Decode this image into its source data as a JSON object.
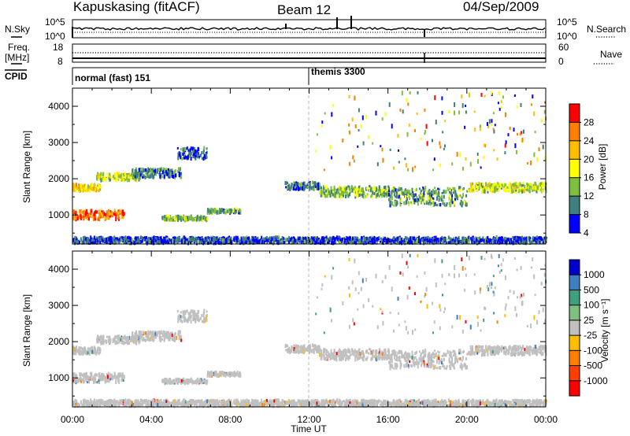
{
  "header": {
    "station": "Kapuskasing (fitACF)",
    "beam": "Beam 12",
    "date": "04/Sep/2009"
  },
  "status_panels": {
    "nsky_label": "N.Sky",
    "nsky_ticks": [
      "10^5",
      "10^0"
    ],
    "nsearch_label": "N.Search",
    "nsearch_ticks": [
      "10^5",
      "10^0"
    ],
    "freq_label_line1": "Freq.",
    "freq_label_line2": "[MHz]",
    "freq_ticks": [
      "18",
      "8"
    ],
    "nave_label": "Nave",
    "nave_ticks": [
      "60",
      "0"
    ],
    "cpid_label": "CPID",
    "cpid_modes": [
      {
        "label": "normal (fast) 151",
        "start_hour": 0
      },
      {
        "label": "themis 3300",
        "start_hour": 12
      }
    ]
  },
  "chart_data": [
    {
      "type": "heatmap",
      "name": "power",
      "ylabel": "Slant Range [km]",
      "xlabel": "Time UT",
      "x_range_hours": [
        0,
        24
      ],
      "ylim": [
        200,
        4500
      ],
      "y_ticks": [
        1000,
        2000,
        3000,
        4000
      ],
      "x_tick_labels": [
        "00:00",
        "04:00",
        "08:00",
        "12:00",
        "16:00",
        "20:00",
        "00:00"
      ],
      "colorbar_label": "Power [dB]",
      "colorbar_ticks": [
        "28",
        "24",
        "20",
        "16",
        "12",
        "8",
        "4"
      ],
      "colorbar_colors": [
        "#ff0000",
        "#ff7f00",
        "#ffbf00",
        "#ffff00",
        "#7fbf3f",
        "#3f7f7f",
        "#0000ff"
      ],
      "echo_regions": [
        {
          "t0": 0.0,
          "t1": 2.6,
          "range": 1000,
          "spread": 120,
          "power": 24
        },
        {
          "t0": 0.0,
          "t1": 1.4,
          "range": 1750,
          "spread": 90,
          "power": 18
        },
        {
          "t0": 1.2,
          "t1": 3.4,
          "range": 2050,
          "spread": 100,
          "power": 14
        },
        {
          "t0": 3.0,
          "t1": 5.5,
          "range": 2150,
          "spread": 120,
          "power": 9
        },
        {
          "t0": 5.3,
          "t1": 6.8,
          "range": 2700,
          "spread": 150,
          "power": 6
        },
        {
          "t0": 4.5,
          "t1": 6.8,
          "range": 900,
          "spread": 60,
          "power": 12
        },
        {
          "t0": 6.8,
          "t1": 8.5,
          "range": 1100,
          "spread": 50,
          "power": 10
        },
        {
          "t0": 10.7,
          "t1": 12.5,
          "range": 1800,
          "spread": 100,
          "power": 8
        },
        {
          "t0": 12.5,
          "t1": 16.0,
          "range": 1650,
          "spread": 150,
          "power": 12
        },
        {
          "t0": 16.0,
          "t1": 20.0,
          "range": 1500,
          "spread": 250,
          "power": 10
        },
        {
          "t0": 20.0,
          "t1": 24.0,
          "range": 1750,
          "spread": 120,
          "power": 14
        },
        {
          "t0": 0.0,
          "t1": 24.0,
          "range": 300,
          "spread": 80,
          "power": 6
        }
      ]
    },
    {
      "type": "heatmap",
      "name": "velocity",
      "ylabel": "Slant Range [km]",
      "xlabel": "Time UT",
      "x_range_hours": [
        0,
        24
      ],
      "ylim": [
        200,
        4500
      ],
      "y_ticks": [
        1000,
        2000,
        3000,
        4000
      ],
      "x_tick_labels": [
        "00:00",
        "04:00",
        "08:00",
        "12:00",
        "16:00",
        "20:00",
        "00:00"
      ],
      "colorbar_label": "Velocity [m s⁻¹]",
      "colorbar_ticks": [
        "1000",
        "500",
        "100",
        "25",
        "-25",
        "-100",
        "-500",
        "-1000"
      ],
      "colorbar_colors": [
        "#0000cc",
        "#3f7fbf",
        "#3f9f7f",
        "#7fbf7f",
        "#c0c0c0",
        "#ffbf00",
        "#ff7f00",
        "#ff3f00",
        "#ff0000"
      ],
      "dominant_color": "#c0c0c0"
    }
  ]
}
